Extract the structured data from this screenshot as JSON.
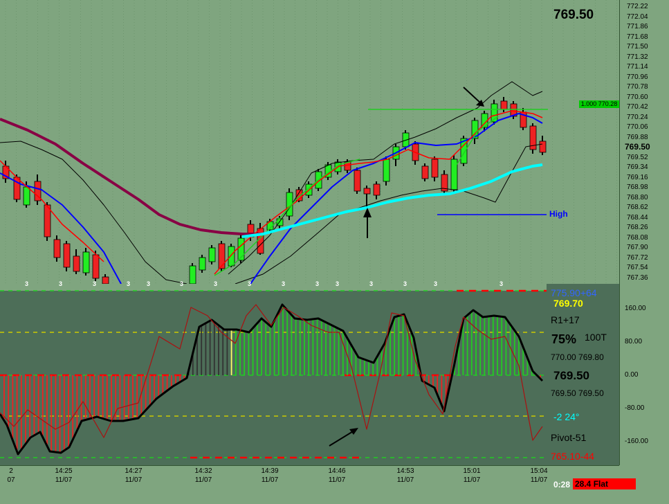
{
  "top_panel": {
    "last_price_header": "769.50",
    "price_scale": [
      "772.22",
      "772.04",
      "771.86",
      "771.68",
      "771.50",
      "771.32",
      "771.14",
      "770.96",
      "770.78",
      "770.60",
      "770.42",
      "770.24",
      "770.06",
      "769.88",
      "769.70",
      "769.52",
      "769.34",
      "769.16",
      "768.98",
      "768.80",
      "768.62",
      "768.44",
      "768.26",
      "768.08",
      "767.90",
      "767.72",
      "767.54",
      "767.36"
    ],
    "current_price_tag": "769.50",
    "target_tag": "1.000 770.28",
    "high_label": "High"
  },
  "bar_count_markers": [
    "3",
    "3",
    "3",
    "3",
    "3",
    "3",
    "3",
    "3",
    "3",
    "3",
    "3",
    "3",
    "3",
    "3",
    "3",
    "3",
    "3",
    "3"
  ],
  "indicator_panel": {
    "scale": [
      "160.00",
      "80.00",
      "0.00",
      "-80.00",
      "-160.00"
    ],
    "right_labels": {
      "r2": "775.90+64",
      "r2_price": "769.70",
      "r1": "R1+17",
      "pct": "75%",
      "ticks": "100T",
      "bid_ask_top": "770.00 769.80",
      "last": "769.50",
      "bid_ask_bottom": "769.50 769.50",
      "angle": "-2  24°",
      "pivot": "Pivot-51",
      "s1": "765.10-44"
    }
  },
  "time_axis": [
    {
      "time": "2",
      "date": "07"
    },
    {
      "time": "14:25",
      "date": "11/07"
    },
    {
      "time": "14:27",
      "date": "11/07"
    },
    {
      "time": "14:32",
      "date": "11/07"
    },
    {
      "time": "14:39",
      "date": "11/07"
    },
    {
      "time": "14:46",
      "date": "11/07"
    },
    {
      "time": "14:53",
      "date": "11/07"
    },
    {
      "time": "15:01",
      "date": "11/07"
    },
    {
      "time": "15:04",
      "date": "11/07"
    }
  ],
  "status_bar": {
    "timer": "0:28",
    "status": "28.4 Flat"
  },
  "colors": {
    "chart_bg": "#7fa57f",
    "indicator_bg": "#4d6e58",
    "up_candle": "#22ee22",
    "down_candle": "#ee2222",
    "ema_fast": "#0000ff",
    "ema_slow": "#880044",
    "signal_line": "#00ffff"
  }
}
